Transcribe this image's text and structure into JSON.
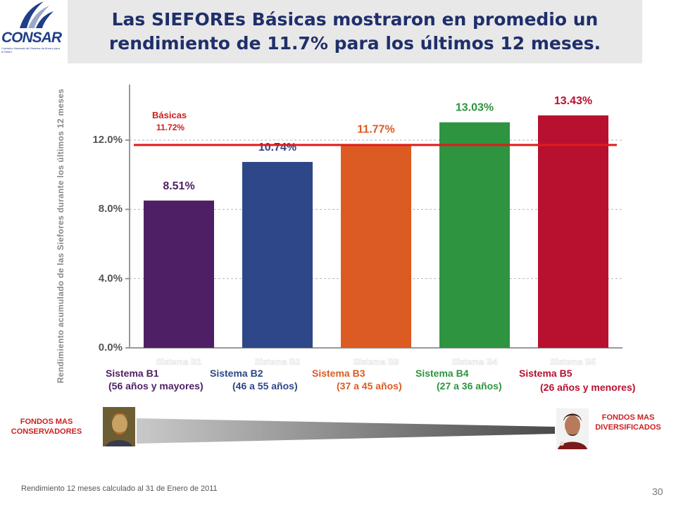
{
  "slide": {
    "title": "Las SIEFOREs Básicas mostraron en promedio un rendimiento de 11.7% para los últimos 12 meses.",
    "logo_text": "CONSAR",
    "logo_subtext": "Comisión Nacional del Sistema de Ahorro para el Retiro",
    "footnote": "Rendimiento 12 meses calculado al 31 de Enero de 2011",
    "page_number": "30",
    "fondos_left": "FONDOS MAS CONSERVADORES",
    "fondos_right": "FONDOS MAS DIVERSIFICADOS"
  },
  "chart_data": {
    "type": "bar",
    "title": "",
    "ylabel": "Rendimiento acumulado de las Siefores durante los últimos 12 meses",
    "xlabel": "",
    "ylim": [
      0,
      15
    ],
    "yticks": [
      "0.0%",
      "4.0%",
      "8.0%",
      "12.0%"
    ],
    "ytick_values": [
      0,
      4,
      8,
      12
    ],
    "grid": true,
    "categories": [
      "Sistema B1",
      "Sistema B2",
      "Sistema B3",
      "Sistema B4",
      "Sistema B5"
    ],
    "age_ranges": [
      "(56 años y mayores)",
      "(46 a 55 años)",
      "(37 a 45 años)",
      "(27 a 36 años)",
      "(26 años y menores)"
    ],
    "values": [
      8.51,
      10.74,
      11.77,
      13.03,
      13.43
    ],
    "value_labels": [
      "8.51%",
      "10.74%",
      "11.77%",
      "13.03%",
      "13.43%"
    ],
    "colors": [
      "#4f1f66",
      "#2e4788",
      "#dc5b22",
      "#2e9440",
      "#b8102f"
    ],
    "reference_line": {
      "name": "Básicas",
      "value": 11.72,
      "label": "11.72%",
      "color": "#e01b1b"
    }
  }
}
